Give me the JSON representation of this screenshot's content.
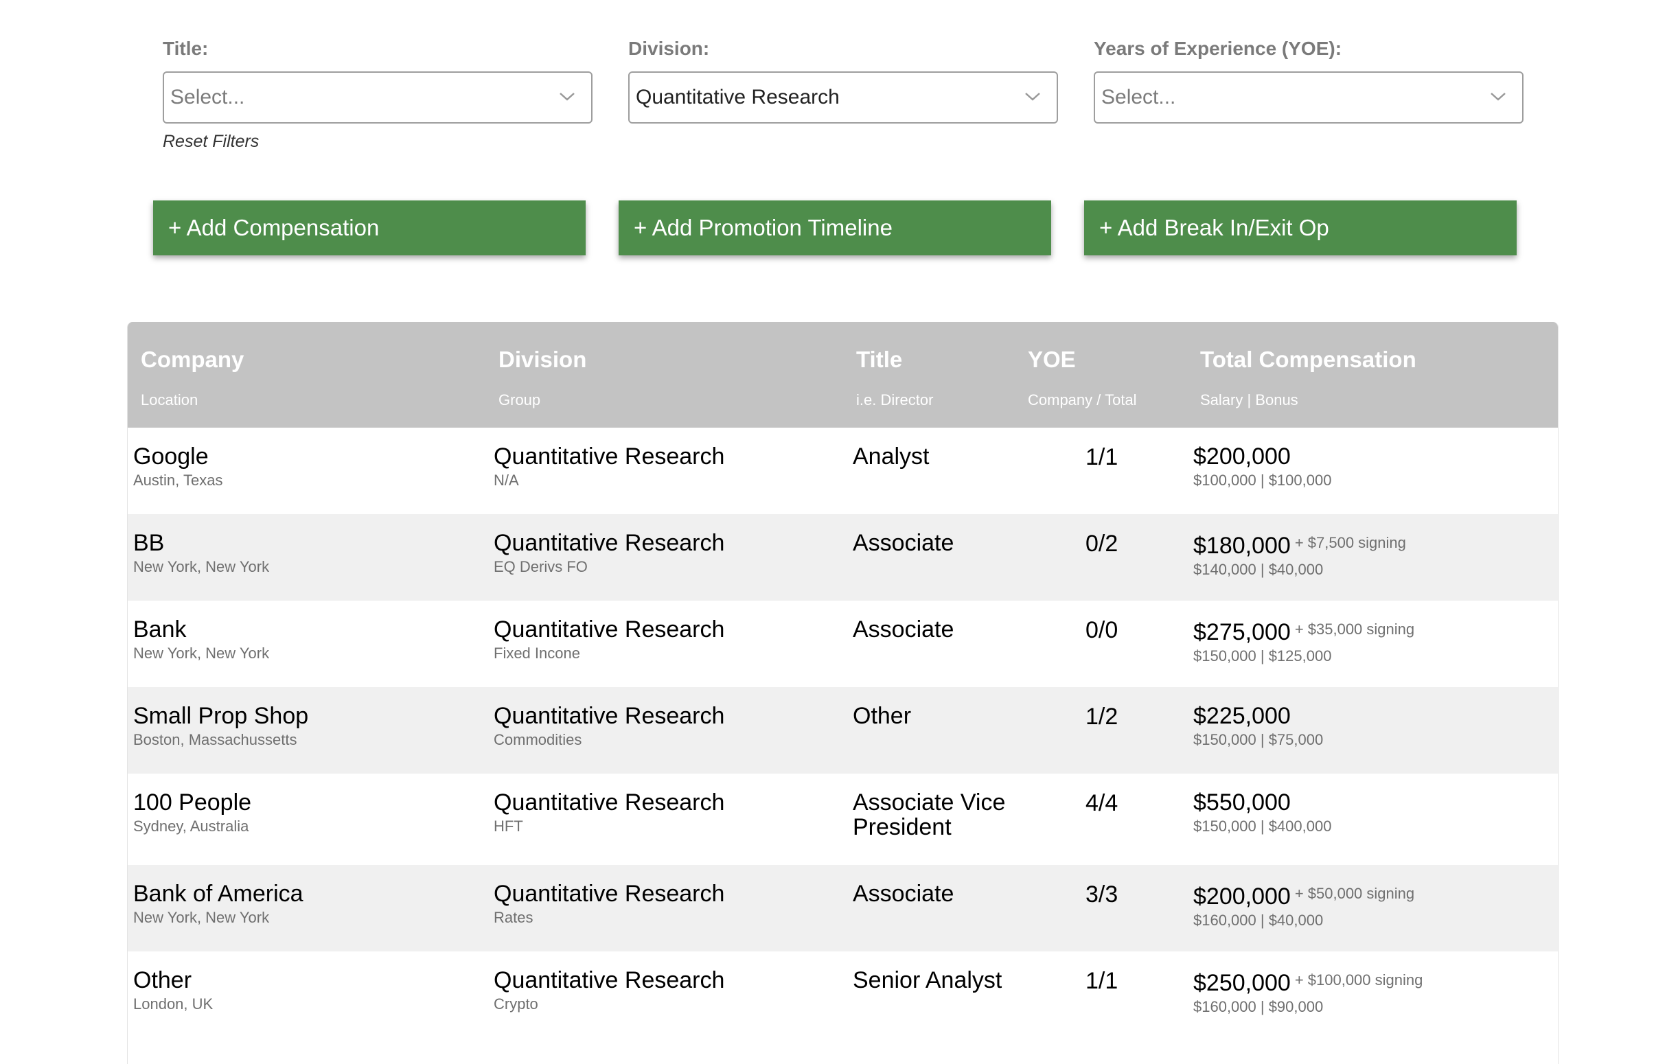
{
  "filters": {
    "title": {
      "label": "Title:",
      "placeholder": "Select..."
    },
    "division": {
      "label": "Division:",
      "value": "Quantitative Research"
    },
    "yoe": {
      "label": "Years of Experience (YOE):",
      "placeholder": "Select..."
    },
    "reset_label": "Reset Filters"
  },
  "actions": {
    "add_compensation": "+ Add Compensation",
    "add_promotion": "+ Add Promotion Timeline",
    "add_break_in": "+ Add Break In/Exit Op"
  },
  "table": {
    "headers": {
      "company": {
        "main": "Company",
        "sub": "Location"
      },
      "division": {
        "main": "Division",
        "sub": "Group"
      },
      "title": {
        "main": "Title",
        "sub": "i.e. Director"
      },
      "yoe": {
        "main": "YOE",
        "sub": "Company / Total"
      },
      "comp": {
        "main": "Total Compensation",
        "sub": "Salary | Bonus"
      }
    },
    "rows": [
      {
        "company": "Google",
        "location": "Austin, Texas",
        "division": "Quantitative Research",
        "group": "N/A",
        "title": "Analyst",
        "yoe": "1/1",
        "total": "$200,000",
        "signing": "",
        "breakdown": "$100,000 | $100,000"
      },
      {
        "company": "BB",
        "location": "New York, New York",
        "division": "Quantitative Research",
        "group": "EQ Derivs FO",
        "title": "Associate",
        "yoe": "0/2",
        "total": "$180,000",
        "signing": "+ $7,500 signing",
        "breakdown": "$140,000 | $40,000"
      },
      {
        "company": "Bank",
        "location": "New York, New York",
        "division": "Quantitative Research",
        "group": "Fixed Incone",
        "title": "Associate",
        "yoe": "0/0",
        "total": "$275,000",
        "signing": "+ $35,000 signing",
        "breakdown": "$150,000 | $125,000"
      },
      {
        "company": "Small Prop Shop",
        "location": "Boston, Massachussetts",
        "division": "Quantitative Research",
        "group": "Commodities",
        "title": "Other",
        "yoe": "1/2",
        "total": "$225,000",
        "signing": "",
        "breakdown": "$150,000 | $75,000"
      },
      {
        "company": "100 People",
        "location": "Sydney, Australia",
        "division": "Quantitative Research",
        "group": "HFT",
        "title": "Associate Vice President",
        "yoe": "4/4",
        "total": "$550,000",
        "signing": "",
        "breakdown": "$150,000 | $400,000"
      },
      {
        "company": "Bank of America",
        "location": "New York, New York",
        "division": "Quantitative Research",
        "group": "Rates",
        "title": "Associate",
        "yoe": "3/3",
        "total": "$200,000",
        "signing": "+ $50,000 signing",
        "breakdown": "$160,000 | $40,000"
      },
      {
        "company": "Other",
        "location": "London, UK",
        "division": "Quantitative Research",
        "group": "Crypto",
        "title": "Senior Analyst",
        "yoe": "1/1",
        "total": "$250,000",
        "signing": "+ $100,000 signing",
        "breakdown": "$160,000 | $90,000"
      }
    ]
  },
  "icons": {
    "dropdown": "chevron-down-icon"
  }
}
